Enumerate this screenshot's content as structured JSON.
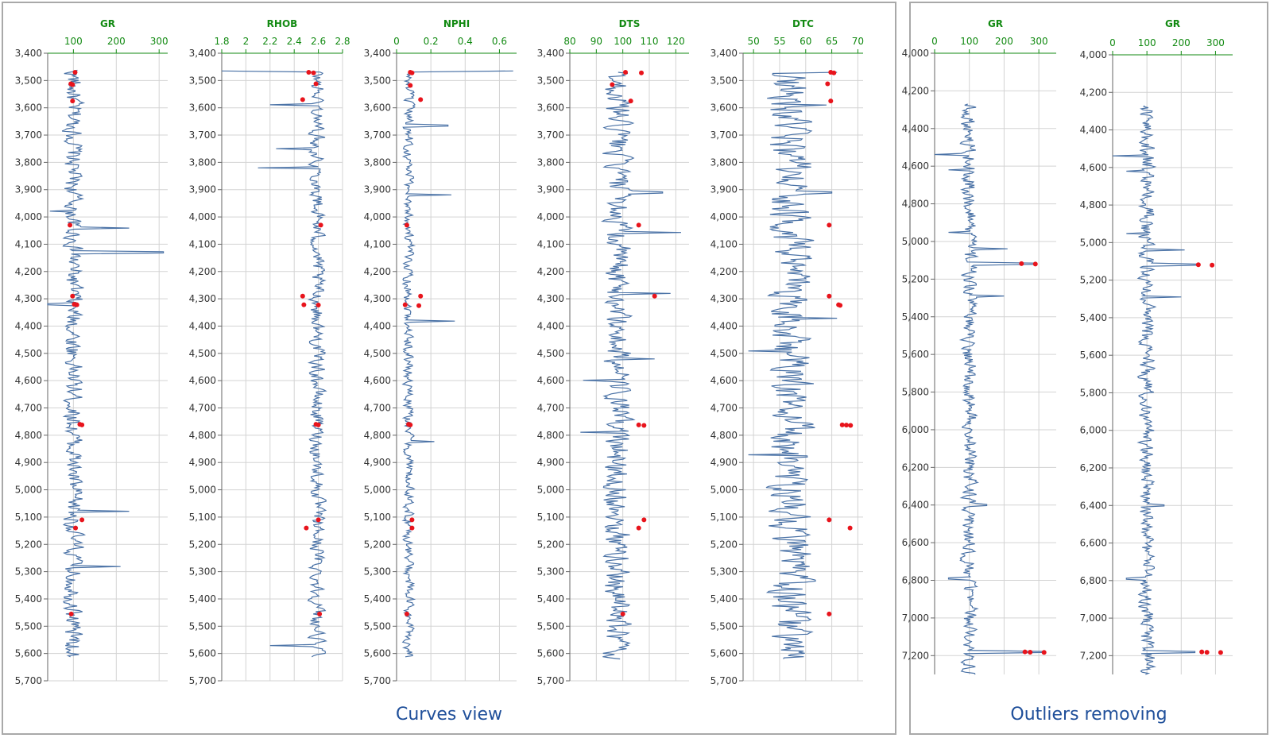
{
  "captions": {
    "curves": "Curves view",
    "outliers": "Outliers removing"
  },
  "colors": {
    "curve": "#4a72a6",
    "outlier": "#e8141c",
    "grid": "#d3d3d3",
    "axis_text": "#128a12"
  },
  "chart_data": [
    {
      "type": "line",
      "title": "GR",
      "panel": "curves",
      "xticks": [
        100,
        200,
        300
      ],
      "xlim": [
        40,
        320
      ],
      "ylim": [
        3400,
        5700
      ],
      "yticks": [
        3400,
        3500,
        3600,
        3700,
        3800,
        3900,
        4000,
        4100,
        4200,
        4300,
        4400,
        4500,
        4600,
        4700,
        4800,
        4900,
        5000,
        5100,
        5200,
        5300,
        5400,
        5500,
        5600,
        5700
      ],
      "ytick_labels": [
        "3,400",
        "3,500",
        "3,600",
        "3,700",
        "3,800",
        "3,900",
        "4,000",
        "4,100",
        "4,200",
        "4,300",
        "4,400",
        "4,500",
        "4,600",
        "4,700",
        "4,800",
        "4,900",
        "5,000",
        "5,100",
        "5,200",
        "5,300",
        "5,400",
        "5,500",
        "5,600",
        "5,700"
      ],
      "depth_range": [
        3462,
        5612
      ],
      "curve_center": 100,
      "curve_spread": 22,
      "spikes": [
        [
          3980,
          45
        ],
        [
          4040,
          230
        ],
        [
          4130,
          310
        ],
        [
          4320,
          40
        ],
        [
          5080,
          230
        ],
        [
          5280,
          210
        ]
      ],
      "outliers": [
        [
          3470,
          104
        ],
        [
          3512,
          94
        ],
        [
          3515,
          98
        ],
        [
          3575,
          98
        ],
        [
          4030,
          92
        ],
        [
          4290,
          98
        ],
        [
          4320,
          102
        ],
        [
          4322,
          108
        ],
        [
          4760,
          115
        ],
        [
          4762,
          120
        ],
        [
          5110,
          120
        ],
        [
          5140,
          105
        ],
        [
          5455,
          95
        ]
      ]
    },
    {
      "type": "line",
      "title": "RHOB",
      "panel": "curves",
      "xticks": [
        1.8,
        2.0,
        2.2,
        2.4,
        2.6,
        2.8
      ],
      "xlim": [
        1.8,
        2.8
      ],
      "ylim": [
        3400,
        5700
      ],
      "yticks": [
        3400,
        3500,
        3600,
        3700,
        3800,
        3900,
        4000,
        4100,
        4200,
        4300,
        4400,
        4500,
        4600,
        4700,
        4800,
        4900,
        5000,
        5100,
        5200,
        5300,
        5400,
        5500,
        5600,
        5700
      ],
      "ytick_labels": [
        "3,400",
        "3,500",
        "3,600",
        "3,700",
        "3,800",
        "3,900",
        "4,000",
        "4,100",
        "4,200",
        "4,300",
        "4,400",
        "4,500",
        "4,600",
        "4,700",
        "4,800",
        "4,900",
        "5,000",
        "5,100",
        "5,200",
        "5,300",
        "5,400",
        "5,500",
        "5,600",
        "5,700"
      ],
      "depth_range": [
        3465,
        5612
      ],
      "curve_center": 2.59,
      "curve_spread": 0.06,
      "spikes": [
        [
          3465,
          1.8
        ],
        [
          3590,
          2.2
        ],
        [
          3750,
          2.25
        ],
        [
          3820,
          2.1
        ],
        [
          5570,
          2.2
        ]
      ],
      "outliers": [
        [
          3470,
          2.52
        ],
        [
          3472,
          2.56
        ],
        [
          3512,
          2.58
        ],
        [
          3570,
          2.47
        ],
        [
          4030,
          2.62
        ],
        [
          4290,
          2.47
        ],
        [
          4322,
          2.48
        ],
        [
          4323,
          2.6
        ],
        [
          4760,
          2.58
        ],
        [
          4762,
          2.6
        ],
        [
          5110,
          2.6
        ],
        [
          5140,
          2.5
        ],
        [
          5455,
          2.61
        ]
      ]
    },
    {
      "type": "line",
      "title": "NPHI",
      "panel": "curves",
      "xticks": [
        0,
        0.2,
        0.4,
        0.6
      ],
      "xlim": [
        0,
        0.7
      ],
      "ylim": [
        3400,
        5700
      ],
      "yticks": [
        3400,
        3500,
        3600,
        3700,
        3800,
        3900,
        4000,
        4100,
        4200,
        4300,
        4400,
        4500,
        4600,
        4700,
        4800,
        4900,
        5000,
        5100,
        5200,
        5300,
        5400,
        5500,
        5600,
        5700
      ],
      "ytick_labels": [
        "3,400",
        "3,500",
        "3,600",
        "3,700",
        "3,800",
        "3,900",
        "4,000",
        "4,100",
        "4,200",
        "4,300",
        "4,400",
        "4,500",
        "4,600",
        "4,700",
        "4,800",
        "4,900",
        "5,000",
        "5,100",
        "5,200",
        "5,300",
        "5,400",
        "5,500",
        "5,600",
        "5,700"
      ],
      "depth_range": [
        3465,
        5612
      ],
      "curve_center": 0.07,
      "curve_spread": 0.03,
      "spikes": [
        [
          3465,
          0.68
        ],
        [
          3665,
          0.3
        ],
        [
          3920,
          0.32
        ],
        [
          4380,
          0.34
        ],
        [
          4825,
          0.22
        ]
      ],
      "outliers": [
        [
          3470,
          0.08
        ],
        [
          3472,
          0.09
        ],
        [
          3518,
          0.08
        ],
        [
          3570,
          0.14
        ],
        [
          4030,
          0.06
        ],
        [
          4290,
          0.14
        ],
        [
          4322,
          0.05
        ],
        [
          4325,
          0.13
        ],
        [
          4760,
          0.07
        ],
        [
          4762,
          0.08
        ],
        [
          5110,
          0.09
        ],
        [
          5140,
          0.09
        ],
        [
          5455,
          0.06
        ]
      ]
    },
    {
      "type": "line",
      "title": "DTS",
      "panel": "curves",
      "xticks": [
        80,
        90,
        100,
        110,
        120
      ],
      "xlim": [
        80,
        125
      ],
      "ylim": [
        3400,
        5700
      ],
      "yticks": [
        3400,
        3500,
        3600,
        3700,
        3800,
        3900,
        4000,
        4100,
        4200,
        4300,
        4400,
        4500,
        4600,
        4700,
        4800,
        4900,
        5000,
        5100,
        5200,
        5300,
        5400,
        5500,
        5600,
        5700
      ],
      "ytick_labels": [
        "3,400",
        "3,500",
        "3,600",
        "3,700",
        "3,800",
        "3,900",
        "4,000",
        "4,100",
        "4,200",
        "4,300",
        "4,400",
        "4,500",
        "4,600",
        "4,700",
        "4,800",
        "4,900",
        "5,000",
        "5,100",
        "5,200",
        "5,300",
        "5,400",
        "5,500",
        "5,600",
        "5,700"
      ],
      "depth_range": [
        3470,
        5620
      ],
      "curve_center": 98,
      "curve_spread": 5,
      "spikes": [
        [
          3910,
          115
        ],
        [
          4057,
          122
        ],
        [
          4280,
          118
        ],
        [
          4520,
          112
        ],
        [
          4600,
          85
        ],
        [
          4790,
          84
        ]
      ],
      "outliers": [
        [
          3470,
          101
        ],
        [
          3472,
          107
        ],
        [
          3515,
          96
        ],
        [
          3575,
          103
        ],
        [
          4030,
          106
        ],
        [
          4290,
          112
        ],
        [
          4762,
          106
        ],
        [
          4764,
          108
        ],
        [
          5110,
          108
        ],
        [
          5140,
          106
        ],
        [
          5455,
          100
        ]
      ]
    },
    {
      "type": "line",
      "title": "DTC",
      "panel": "curves",
      "xticks": [
        50,
        55,
        60,
        65,
        70
      ],
      "xlim": [
        48,
        71
      ],
      "ylim": [
        3400,
        5700
      ],
      "yticks": [
        3400,
        3500,
        3600,
        3700,
        3800,
        3900,
        4000,
        4100,
        4200,
        4300,
        4400,
        4500,
        4600,
        4700,
        4800,
        4900,
        5000,
        5100,
        5200,
        5300,
        5400,
        5500,
        5600,
        5700
      ],
      "ytick_labels": [
        "3,400",
        "3,500",
        "3,600",
        "3,700",
        "3,800",
        "3,900",
        "4,000",
        "4,100",
        "4,200",
        "4,300",
        "4,400",
        "4,500",
        "4,600",
        "4,700",
        "4,800",
        "4,900",
        "5,000",
        "5,100",
        "5,200",
        "5,300",
        "5,400",
        "5,500",
        "5,600",
        "5,700"
      ],
      "depth_range": [
        3470,
        5620
      ],
      "curve_center": 57,
      "curve_spread": 4,
      "spikes": [
        [
          3470,
          66
        ],
        [
          3590,
          64
        ],
        [
          3910,
          65
        ],
        [
          4370,
          66
        ],
        [
          4490,
          49
        ],
        [
          4870,
          49
        ]
      ],
      "outliers": [
        [
          3470,
          64.8
        ],
        [
          3472,
          65.4
        ],
        [
          3512,
          64.2
        ],
        [
          3575,
          64.8
        ],
        [
          4030,
          64.5
        ],
        [
          4290,
          64.5
        ],
        [
          4322,
          66.3
        ],
        [
          4324,
          66.6
        ],
        [
          4762,
          67
        ],
        [
          4763,
          67.8
        ],
        [
          4764,
          68.6
        ],
        [
          5110,
          64.5
        ],
        [
          5140,
          68.5
        ],
        [
          5455,
          64.5
        ]
      ]
    },
    {
      "type": "line",
      "title": "GR",
      "panel": "outliers",
      "xticks": [
        0,
        100,
        200,
        300
      ],
      "xlim": [
        0,
        350
      ],
      "ylim": [
        4000,
        7300
      ],
      "yticks": [
        4000,
        4200,
        4400,
        4600,
        4800,
        5000,
        5200,
        5400,
        5600,
        5800,
        6000,
        6200,
        6400,
        6600,
        6800,
        7000,
        7200
      ],
      "ytick_labels": [
        "4,000",
        "4,200",
        "4,400",
        "4,600",
        "4,800",
        "5,000",
        "5,200",
        "5,400",
        "5,600",
        "5,800",
        "6,000",
        "6,200",
        "6,400",
        "6,600",
        "6,800",
        "7,000",
        "7,200"
      ],
      "depth_range": [
        4270,
        7300
      ],
      "curve_center": 100,
      "curve_spread": 22,
      "spikes": [
        [
          4540,
          0
        ],
        [
          4620,
          40
        ],
        [
          4950,
          40
        ],
        [
          5040,
          210
        ],
        [
          5118,
          290
        ],
        [
          5290,
          200
        ],
        [
          6400,
          150
        ],
        [
          6790,
          40
        ],
        [
          7180,
          310
        ]
      ],
      "outliers": [
        [
          5118,
          250
        ],
        [
          5120,
          290
        ],
        [
          7180,
          260
        ],
        [
          7182,
          275
        ],
        [
          7183,
          315
        ]
      ]
    },
    {
      "type": "line",
      "title": "GR",
      "panel": "outliers",
      "xticks": [
        0,
        100,
        200,
        300
      ],
      "xlim": [
        0,
        350
      ],
      "ylim": [
        4000,
        7300
      ],
      "yticks": [
        4000,
        4200,
        4400,
        4600,
        4800,
        5000,
        5200,
        5400,
        5600,
        5800,
        6000,
        6200,
        6400,
        6600,
        6800,
        7000,
        7200
      ],
      "ytick_labels": [
        "4,000",
        "4,200",
        "4,400",
        "4,600",
        "4,800",
        "5,000",
        "5,200",
        "5,400",
        "5,600",
        "5,800",
        "6,000",
        "6,200",
        "6,400",
        "6,600",
        "6,800",
        "7,000",
        "7,200"
      ],
      "depth_range": [
        4270,
        7300
      ],
      "curve_center": 100,
      "curve_spread": 22,
      "spikes": [
        [
          4540,
          0
        ],
        [
          4620,
          40
        ],
        [
          4950,
          40
        ],
        [
          5040,
          210
        ],
        [
          5118,
          250
        ],
        [
          5290,
          200
        ],
        [
          6400,
          150
        ],
        [
          6790,
          40
        ],
        [
          7180,
          240
        ]
      ],
      "outliers": [
        [
          5118,
          250
        ],
        [
          5120,
          290
        ],
        [
          7180,
          260
        ],
        [
          7182,
          275
        ],
        [
          7183,
          315
        ]
      ]
    }
  ]
}
